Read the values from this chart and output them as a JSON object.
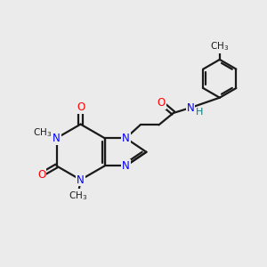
{
  "bg_color": "#ebebeb",
  "bond_color": "#1a1a1a",
  "N_color": "#0000ff",
  "O_color": "#ff0000",
  "NH_color": "#008080",
  "line_width": 1.6,
  "font_size": 8.5,
  "fig_size": [
    3.0,
    3.0
  ],
  "dpi": 100,
  "xlim": [
    0,
    10
  ],
  "ylim": [
    0,
    10
  ]
}
